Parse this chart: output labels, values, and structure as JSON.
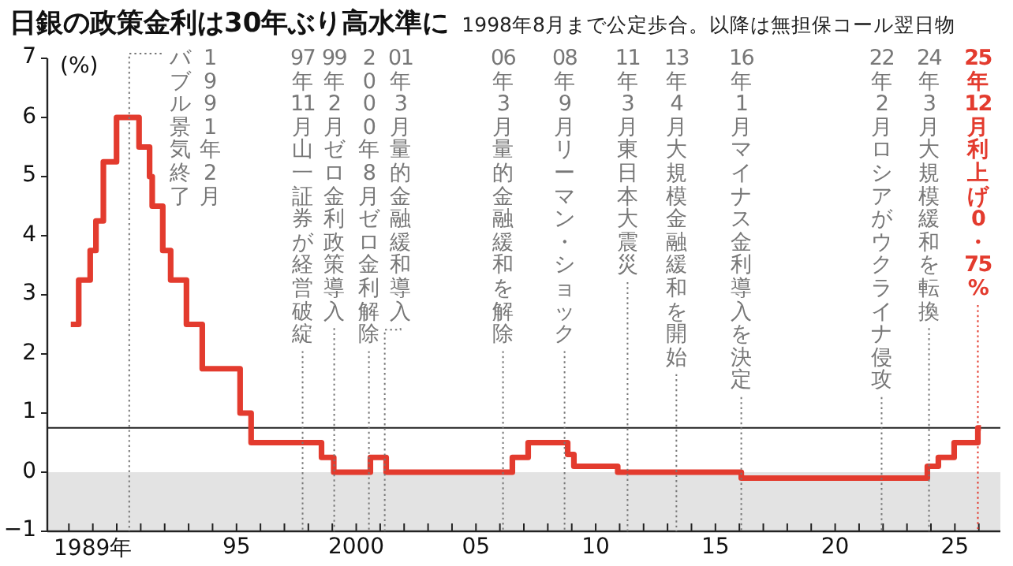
{
  "chart_data": {
    "type": "step",
    "title": "日銀の政策金利は30年ぶり高水準に",
    "subtitle": "1998年8月まで公定歩合。以降は無担保コール翌日物",
    "ylabel": "(%)",
    "x": [
      1988.08,
      1988.41,
      1988.89,
      1989.13,
      1989.44,
      1989.99,
      1990.93,
      1991.37,
      1991.48,
      1991.92,
      1992.25,
      1992.91,
      1993.57,
      1995.15,
      1995.61,
      1998.55,
      1999.06,
      2000.59,
      2001.25,
      2006.52,
      2007.18,
      2008.83,
      2009.09,
      2010.92,
      2016.08,
      2023.85,
      2024.31,
      2024.97,
      2025.96,
      2026.09
    ],
    "series": [
      {
        "color": "#e33b2e",
        "values": [
          2.5,
          3.25,
          3.75,
          4.25,
          5.25,
          6,
          5.5,
          5,
          4.5,
          3.75,
          3.25,
          2.5,
          1.75,
          1,
          0.5,
          0.25,
          0,
          0.25,
          0,
          0.25,
          0.5,
          0.3,
          0.1,
          0,
          -0.1,
          0.1,
          0.25,
          0.5,
          0.75,
          0.75
        ]
      }
    ],
    "xlim": [
      1987.1,
      2026.9
    ],
    "xticks": [
      {
        "value": 1988,
        "label": null
      },
      {
        "value": 1989,
        "label": "1989年"
      },
      {
        "value": 1990,
        "label": null
      },
      {
        "value": 1991,
        "label": null
      },
      {
        "value": 1992,
        "label": null
      },
      {
        "value": 1993,
        "label": null
      },
      {
        "value": 1994,
        "label": null
      },
      {
        "value": 1995,
        "label": "95"
      },
      {
        "value": 1996,
        "label": null
      },
      {
        "value": 1997,
        "label": null
      },
      {
        "value": 1998,
        "label": null
      },
      {
        "value": 1999,
        "label": null
      },
      2000,
      {
        "value": 2001,
        "label": null
      },
      {
        "value": 2002,
        "label": null
      },
      {
        "value": 2003,
        "label": null
      },
      {
        "value": 2004,
        "label": null
      },
      {
        "value": 2005,
        "label": "05"
      },
      {
        "value": 2006,
        "label": null
      },
      {
        "value": 2007,
        "label": null
      },
      {
        "value": 2008,
        "label": null
      },
      {
        "value": 2009,
        "label": null
      },
      {
        "value": 2010,
        "label": "10"
      },
      {
        "value": 2011,
        "label": null
      },
      {
        "value": 2012,
        "label": null
      },
      {
        "value": 2013,
        "label": null
      },
      {
        "value": 2014,
        "label": null
      },
      {
        "value": 2015,
        "label": "15"
      },
      {
        "value": 2016,
        "label": null
      },
      {
        "value": 2017,
        "label": null
      },
      {
        "value": 2018,
        "label": null
      },
      {
        "value": 2019,
        "label": null
      },
      {
        "value": 2020,
        "label": "20"
      },
      {
        "value": 2021,
        "label": null
      },
      {
        "value": 2022,
        "label": null
      },
      {
        "value": 2023,
        "label": null
      },
      {
        "value": 2024,
        "label": null
      },
      {
        "value": 2025,
        "label": "25"
      },
      {
        "value": 2026,
        "label": null
      }
    ],
    "ylim": [
      -1,
      7
    ],
    "yticks": [
      -1,
      0,
      1,
      2,
      3,
      4,
      5,
      6,
      7
    ],
    "bands": [
      {
        "axis": "y",
        "from": -1,
        "to": 0,
        "color": "#e3e3e3"
      }
    ],
    "ref_lines": [
      {
        "axis": "y",
        "value": 0.75,
        "color": "#222222",
        "line_style": "solid"
      },
      {
        "axis": "x",
        "value": 1990.52,
        "label": "1991年2月バブル景気終了",
        "color": "#777777",
        "line_style": "dotted"
      },
      {
        "axis": "x",
        "value": 1997.76,
        "label": "97年11月山一証券が経営破綻",
        "color": "#777777",
        "line_style": "dotted"
      },
      {
        "axis": "x",
        "value": 1999.08,
        "label": "99年2月ゼロ金利政策導入",
        "color": "#777777",
        "line_style": "dotted"
      },
      {
        "axis": "x",
        "value": 2000.53,
        "label": "2000年8月ゼロ金利解除",
        "color": "#777777",
        "line_style": "dotted"
      },
      {
        "axis": "x",
        "value": 2001.19,
        "label": "01年3月量的金融緩和導入",
        "color": "#777777",
        "line_style": "dotted"
      },
      {
        "axis": "x",
        "value": 2006.13,
        "label": "06年3月量的金融緩和を解除",
        "color": "#777777",
        "line_style": "dotted"
      },
      {
        "axis": "x",
        "value": 2008.7,
        "label": "08年9月リーマン・ショック",
        "color": "#777777",
        "line_style": "dotted"
      },
      {
        "axis": "x",
        "value": 2011.33,
        "label": "11年3月東日本大震災",
        "color": "#777777",
        "line_style": "dotted"
      },
      {
        "axis": "x",
        "value": 2013.37,
        "label": "13年4月大規模金融緩和を開始",
        "color": "#777777",
        "line_style": "dotted"
      },
      {
        "axis": "x",
        "value": 2016.08,
        "label": "16年1月マイナス金利導入を決定",
        "color": "#777777",
        "line_style": "dotted"
      },
      {
        "axis": "x",
        "value": 2021.94,
        "label": "22年2月ロシアがウクライナ侵攻",
        "color": "#777777",
        "line_style": "dotted"
      },
      {
        "axis": "x",
        "value": 2023.92,
        "label": "24年3月大規模緩和を転換",
        "color": "#777777",
        "line_style": "dotted"
      },
      {
        "axis": "x",
        "value": 2025.96,
        "label": "25年12月利上げ0・75%",
        "color": "#e33b2e",
        "line_style": "dotted"
      }
    ],
    "grid": false,
    "marker": "none",
    "line_style": "solid"
  }
}
